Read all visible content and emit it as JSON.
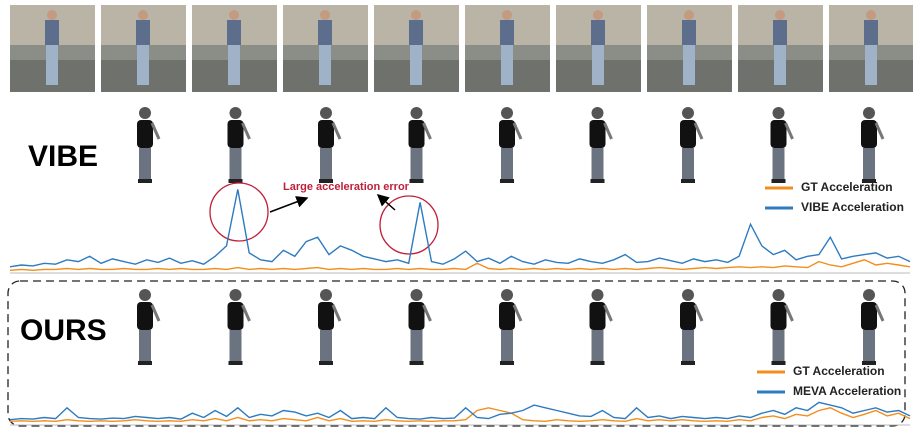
{
  "labels": {
    "top": "VIBE",
    "bottom": "OURS"
  },
  "annotation": "Large acceleration error",
  "chart_data": [
    {
      "type": "line",
      "ylim": [
        0,
        100
      ],
      "series": [
        {
          "name": "GT Acceleration",
          "color": "#f28e1c",
          "values": [
            2,
            3,
            2,
            3,
            3,
            4,
            3,
            4,
            3,
            3,
            4,
            3,
            3,
            4,
            3,
            4,
            3,
            3,
            4,
            3,
            5,
            3,
            4,
            3,
            4,
            3,
            4,
            5,
            3,
            4,
            3,
            4,
            3,
            3,
            4,
            3,
            4,
            3,
            3,
            4,
            3,
            10,
            4,
            3,
            4,
            3,
            4,
            3,
            4,
            3,
            4,
            3,
            4,
            3,
            4,
            3,
            4,
            5,
            4,
            3,
            4,
            5,
            4,
            5,
            6,
            5,
            6,
            5,
            7,
            6,
            5,
            12,
            8,
            6,
            10,
            14,
            8,
            10,
            8,
            6
          ]
        },
        {
          "name": "VIBE Acceleration",
          "color": "#2d7bc0",
          "values": [
            6,
            8,
            7,
            10,
            9,
            14,
            12,
            18,
            10,
            15,
            12,
            9,
            14,
            11,
            16,
            10,
            13,
            9,
            18,
            30,
            95,
            22,
            14,
            12,
            25,
            18,
            35,
            40,
            20,
            30,
            25,
            18,
            15,
            12,
            14,
            10,
            80,
            12,
            9,
            15,
            24,
            12,
            16,
            10,
            18,
            12,
            9,
            14,
            11,
            10,
            15,
            12,
            10,
            14,
            20,
            11,
            12,
            16,
            13,
            10,
            15,
            12,
            14,
            11,
            18,
            55,
            30,
            20,
            25,
            14,
            18,
            20,
            40,
            15,
            18,
            20,
            22,
            16,
            18,
            12
          ]
        }
      ]
    },
    {
      "type": "line",
      "ylim": [
        0,
        100
      ],
      "series": [
        {
          "name": "GT Acceleration",
          "color": "#f28e1c",
          "values": [
            5,
            6,
            5,
            6,
            5,
            8,
            6,
            5,
            6,
            5,
            6,
            8,
            6,
            5,
            6,
            5,
            8,
            6,
            10,
            6,
            12,
            6,
            8,
            6,
            10,
            8,
            6,
            12,
            6,
            10,
            5,
            6,
            5,
            8,
            6,
            5,
            6,
            5,
            6,
            6,
            8,
            25,
            30,
            25,
            20,
            8,
            6,
            5,
            8,
            6,
            5,
            6,
            8,
            6,
            5,
            10,
            6,
            8,
            6,
            8,
            6,
            5,
            6,
            5,
            8,
            6,
            12,
            15,
            10,
            18,
            15,
            25,
            30,
            20,
            12,
            18,
            25,
            15,
            20,
            10
          ]
        },
        {
          "name": "MEVA Acceleration",
          "color": "#2d7bc0",
          "values": [
            8,
            10,
            9,
            12,
            10,
            30,
            12,
            10,
            9,
            11,
            10,
            14,
            12,
            10,
            12,
            9,
            20,
            12,
            25,
            14,
            30,
            12,
            18,
            15,
            25,
            22,
            15,
            20,
            12,
            25,
            10,
            12,
            10,
            30,
            12,
            10,
            9,
            12,
            10,
            11,
            30,
            12,
            10,
            18,
            20,
            25,
            35,
            30,
            25,
            20,
            15,
            14,
            25,
            12,
            10,
            30,
            12,
            15,
            10,
            14,
            12,
            10,
            12,
            10,
            15,
            12,
            20,
            25,
            18,
            30,
            25,
            40,
            35,
            30,
            20,
            25,
            30,
            22,
            25,
            15
          ]
        }
      ]
    }
  ]
}
